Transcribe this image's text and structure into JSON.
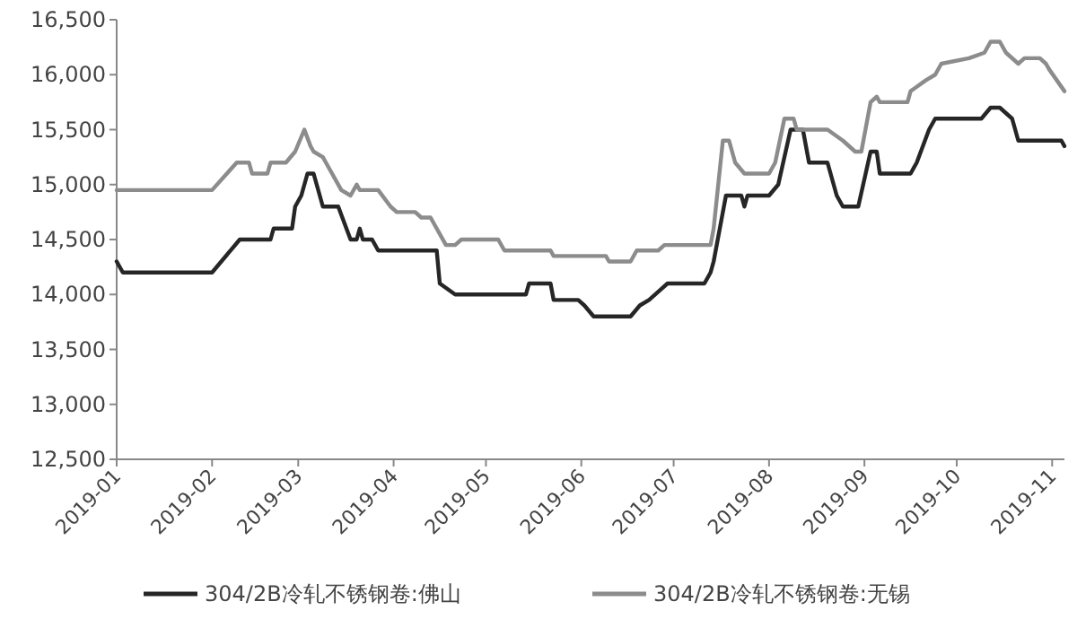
{
  "chart_data": {
    "type": "line",
    "xlim": [
      "2019-01-01",
      "2019-11-05"
    ],
    "xticks": [
      "2019-01",
      "2019-02",
      "2019-03",
      "2019-04",
      "2019-05",
      "2019-06",
      "2019-07",
      "2019-08",
      "2019-09",
      "2019-10",
      "2019-11"
    ],
    "ylim": [
      12500,
      16500
    ],
    "yticks": [
      {
        "value": 12500,
        "label": "12,500"
      },
      {
        "value": 13000,
        "label": "13,000"
      },
      {
        "value": 13500,
        "label": "13,500"
      },
      {
        "value": 14000,
        "label": "14,000"
      },
      {
        "value": 14500,
        "label": "14,500"
      },
      {
        "value": 15000,
        "label": "15,000"
      },
      {
        "value": 15500,
        "label": "15,500"
      },
      {
        "value": 16000,
        "label": "16,000"
      },
      {
        "value": 16500,
        "label": "16,500"
      }
    ],
    "grid": false,
    "legend": "bottom",
    "marker": "none",
    "line_style": "solid",
    "series": [
      {
        "name": "304/2B冷轧不锈钢卷:佛山",
        "color": "#262626",
        "x": [
          "2019-01-01",
          "2019-01-03",
          "2019-02-01",
          "2019-02-10",
          "2019-02-20",
          "2019-02-21",
          "2019-02-27",
          "2019-02-28",
          "2019-03-02",
          "2019-03-04",
          "2019-03-06",
          "2019-03-09",
          "2019-03-14",
          "2019-03-18",
          "2019-03-20",
          "2019-03-21",
          "2019-03-22",
          "2019-03-25",
          "2019-03-27",
          "2019-04-15",
          "2019-04-16",
          "2019-04-21",
          "2019-05-14",
          "2019-05-15",
          "2019-05-22",
          "2019-05-23",
          "2019-05-31",
          "2019-06-02",
          "2019-06-05",
          "2019-06-17",
          "2019-06-20",
          "2019-06-23",
          "2019-06-27",
          "2019-06-29",
          "2019-07-11",
          "2019-07-13",
          "2019-07-14",
          "2019-07-18",
          "2019-07-23",
          "2019-07-24",
          "2019-07-25",
          "2019-08-01",
          "2019-08-04",
          "2019-08-08",
          "2019-08-12",
          "2019-08-14",
          "2019-08-20",
          "2019-08-23",
          "2019-08-25",
          "2019-08-30",
          "2019-09-03",
          "2019-09-05",
          "2019-09-06",
          "2019-09-16",
          "2019-09-18",
          "2019-09-22",
          "2019-09-24",
          "2019-10-09",
          "2019-10-12",
          "2019-10-15",
          "2019-10-19",
          "2019-10-21",
          "2019-11-04",
          "2019-11-05"
        ],
        "values": [
          14300,
          14200,
          14200,
          14500,
          14500,
          14600,
          14600,
          14800,
          14900,
          15100,
          15100,
          14800,
          14800,
          14500,
          14500,
          14600,
          14500,
          14500,
          14400,
          14400,
          14100,
          14000,
          14000,
          14100,
          14100,
          13950,
          13950,
          13900,
          13800,
          13800,
          13900,
          13950,
          14050,
          14100,
          14100,
          14200,
          14300,
          14900,
          14900,
          14800,
          14900,
          14900,
          15000,
          15500,
          15500,
          15200,
          15200,
          14900,
          14800,
          14800,
          15300,
          15300,
          15100,
          15100,
          15200,
          15500,
          15600,
          15600,
          15700,
          15700,
          15600,
          15400,
          15400,
          15350
        ]
      },
      {
        "name": "304/2B冷轧不锈钢卷:无锡",
        "color": "#8c8c8c",
        "x": [
          "2019-01-01",
          "2019-02-01",
          "2019-02-09",
          "2019-02-13",
          "2019-02-14",
          "2019-02-19",
          "2019-02-20",
          "2019-02-25",
          "2019-02-28",
          "2019-03-03",
          "2019-03-05",
          "2019-03-06",
          "2019-03-09",
          "2019-03-10",
          "2019-03-15",
          "2019-03-18",
          "2019-03-20",
          "2019-03-21",
          "2019-03-27",
          "2019-03-31",
          "2019-04-02",
          "2019-04-08",
          "2019-04-10",
          "2019-04-13",
          "2019-04-15",
          "2019-04-18",
          "2019-04-21",
          "2019-04-23",
          "2019-05-05",
          "2019-05-07",
          "2019-05-22",
          "2019-05-23",
          "2019-06-09",
          "2019-06-10",
          "2019-06-17",
          "2019-06-19",
          "2019-06-26",
          "2019-06-28",
          "2019-07-13",
          "2019-07-14",
          "2019-07-17",
          "2019-07-19",
          "2019-07-21",
          "2019-07-24",
          "2019-08-01",
          "2019-08-03",
          "2019-08-06",
          "2019-08-09",
          "2019-08-10",
          "2019-08-20",
          "2019-08-25",
          "2019-08-29",
          "2019-08-31",
          "2019-09-03",
          "2019-09-05",
          "2019-09-06",
          "2019-09-15",
          "2019-09-16",
          "2019-09-21",
          "2019-09-24",
          "2019-09-26",
          "2019-10-05",
          "2019-10-10",
          "2019-10-12",
          "2019-10-15",
          "2019-10-17",
          "2019-10-21",
          "2019-10-23",
          "2019-10-28",
          "2019-10-30",
          "2019-10-31",
          "2019-11-05"
        ],
        "values": [
          14950,
          14950,
          15200,
          15200,
          15100,
          15100,
          15200,
          15200,
          15300,
          15500,
          15350,
          15300,
          15250,
          15200,
          14950,
          14900,
          15000,
          14950,
          14950,
          14800,
          14750,
          14750,
          14700,
          14700,
          14600,
          14450,
          14450,
          14500,
          14500,
          14400,
          14400,
          14350,
          14350,
          14300,
          14300,
          14400,
          14400,
          14450,
          14450,
          14600,
          15400,
          15400,
          15200,
          15100,
          15100,
          15200,
          15600,
          15600,
          15500,
          15500,
          15400,
          15300,
          15300,
          15750,
          15800,
          15750,
          15750,
          15850,
          15950,
          16000,
          16100,
          16150,
          16200,
          16300,
          16300,
          16200,
          16100,
          16150,
          16150,
          16100,
          16050,
          15850
        ]
      }
    ]
  }
}
